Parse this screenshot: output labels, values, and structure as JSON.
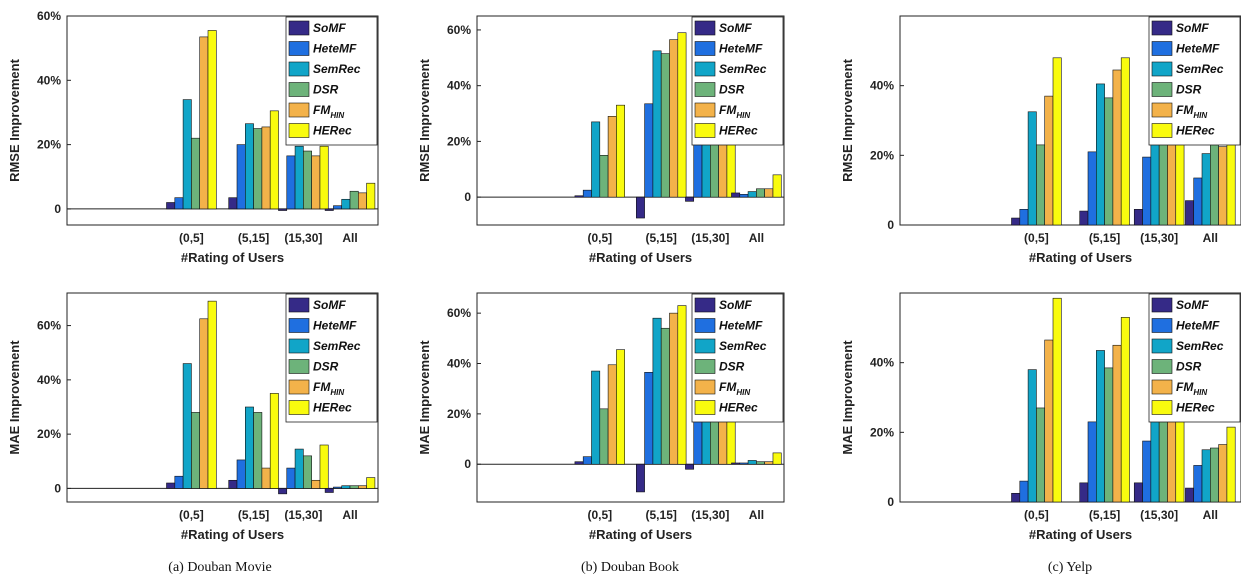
{
  "figure": {
    "captions": [
      "(a)  Douban Movie",
      "(b)  Douban Book",
      "(c)  Yelp"
    ]
  },
  "colors": {
    "SoMF": "#352a87",
    "HeteMF": "#1f6fe0",
    "SemRec": "#11a5c8",
    "DSR": "#6db37a",
    "FM_HIN": "#f3b24a",
    "HERec": "#f9fb0e"
  },
  "chart_data": [
    {
      "type": "bar",
      "categories": [
        "(0,5]",
        "(5,15]",
        "(15,30]",
        "All"
      ],
      "xlabel": "#Rating of Users",
      "ylabel": "RMSE Improvement",
      "ylim": [
        -5,
        60
      ],
      "yticks": [
        0,
        20,
        40,
        60
      ],
      "ytick_labels": [
        "0",
        "20%",
        "40%",
        "60%"
      ],
      "legend": [
        "SoMF",
        "HeteMF",
        "SemRec",
        "DSR",
        "FM",
        "HERec"
      ],
      "legend_sub": [
        "",
        "",
        "",
        "",
        "HIN",
        ""
      ],
      "series": [
        {
          "name": "SoMF",
          "values": [
            2,
            3.5,
            -0.5,
            -0.5
          ]
        },
        {
          "name": "HeteMF",
          "values": [
            3.5,
            20,
            16.5,
            1
          ]
        },
        {
          "name": "SemRec",
          "values": [
            34,
            26.5,
            19.5,
            3
          ]
        },
        {
          "name": "DSR",
          "values": [
            22,
            25,
            18,
            5.5
          ]
        },
        {
          "name": "FM_HIN",
          "values": [
            53.5,
            25.5,
            16.5,
            5
          ]
        },
        {
          "name": "HERec",
          "values": [
            55.5,
            30.5,
            19.5,
            8
          ]
        }
      ]
    },
    {
      "type": "bar",
      "categories": [
        "(0,5]",
        "(5,15]",
        "(15,30]",
        "All"
      ],
      "xlabel": "#Rating of Users",
      "ylabel": "RMSE Improvement",
      "ylim": [
        -10,
        65
      ],
      "yticks": [
        0,
        20,
        40,
        60
      ],
      "ytick_labels": [
        "0",
        "20%",
        "40%",
        "60%"
      ],
      "legend": [
        "SoMF",
        "HeteMF",
        "SemRec",
        "DSR",
        "FM",
        "HERec"
      ],
      "legend_sub": [
        "",
        "",
        "",
        "",
        "HIN",
        ""
      ],
      "series": [
        {
          "name": "SoMF",
          "values": [
            0.5,
            -7.5,
            -1.5,
            1.5
          ]
        },
        {
          "name": "HeteMF",
          "values": [
            2.5,
            33.5,
            21.5,
            1
          ]
        },
        {
          "name": "SemRec",
          "values": [
            27,
            52.5,
            23.5,
            2
          ]
        },
        {
          "name": "DSR",
          "values": [
            15,
            51.5,
            21.5,
            3
          ]
        },
        {
          "name": "FM_HIN",
          "values": [
            29,
            56.5,
            22.5,
            3
          ]
        },
        {
          "name": "HERec",
          "values": [
            33,
            59,
            30.5,
            8
          ]
        }
      ]
    },
    {
      "type": "bar",
      "categories": [
        "(0,5]",
        "(5,15]",
        "(15,30]",
        "All"
      ],
      "xlabel": "#Rating of Users",
      "ylabel": "RMSE Improvement",
      "ylim": [
        0,
        60
      ],
      "yticks": [
        0,
        20,
        40
      ],
      "ytick_labels": [
        "0",
        "20%",
        "40%"
      ],
      "legend": [
        "SoMF",
        "HeteMF",
        "SemRec",
        "DSR",
        "FM",
        "HERec"
      ],
      "legend_sub": [
        "",
        "",
        "",
        "",
        "HIN",
        ""
      ],
      "series": [
        {
          "name": "SoMF",
          "values": [
            2,
            4,
            4.5,
            7
          ]
        },
        {
          "name": "HeteMF",
          "values": [
            4.5,
            21,
            19.5,
            13.5
          ]
        },
        {
          "name": "SemRec",
          "values": [
            32.5,
            40.5,
            35,
            20.5
          ]
        },
        {
          "name": "DSR",
          "values": [
            23,
            36.5,
            33.5,
            24.5
          ]
        },
        {
          "name": "FM_HIN",
          "values": [
            37,
            44.5,
            35,
            22.5
          ]
        },
        {
          "name": "HERec",
          "values": [
            48,
            48,
            36,
            25
          ]
        }
      ]
    },
    {
      "type": "bar",
      "categories": [
        "(0,5]",
        "(5,15]",
        "(15,30]",
        "All"
      ],
      "xlabel": "#Rating of Users",
      "ylabel": "MAE Improvement",
      "ylim": [
        -5,
        72
      ],
      "yticks": [
        0,
        20,
        40,
        60
      ],
      "ytick_labels": [
        "0",
        "20%",
        "40%",
        "60%"
      ],
      "legend": [
        "SoMF",
        "HeteMF",
        "SemRec",
        "DSR",
        "FM",
        "HERec"
      ],
      "legend_sub": [
        "",
        "",
        "",
        "",
        "HIN",
        ""
      ],
      "series": [
        {
          "name": "SoMF",
          "values": [
            2,
            3,
            -2,
            -1.5
          ]
        },
        {
          "name": "HeteMF",
          "values": [
            4.5,
            10.5,
            7.5,
            0.5
          ]
        },
        {
          "name": "SemRec",
          "values": [
            46,
            30,
            14.5,
            1
          ]
        },
        {
          "name": "DSR",
          "values": [
            28,
            28,
            12,
            1
          ]
        },
        {
          "name": "FM_HIN",
          "values": [
            62.5,
            7.5,
            3,
            1
          ]
        },
        {
          "name": "HERec",
          "values": [
            69,
            35,
            16,
            4
          ]
        }
      ]
    },
    {
      "type": "bar",
      "categories": [
        "(0,5]",
        "(5,15]",
        "(15,30]",
        "All"
      ],
      "xlabel": "#Rating of Users",
      "ylabel": "MAE Improvement",
      "ylim": [
        -15,
        68
      ],
      "yticks": [
        0,
        20,
        40,
        60
      ],
      "ytick_labels": [
        "0",
        "20%",
        "40%",
        "60%"
      ],
      "legend": [
        "SoMF",
        "HeteMF",
        "SemRec",
        "DSR",
        "FM",
        "HERec"
      ],
      "legend_sub": [
        "",
        "",
        "",
        "",
        "HIN",
        ""
      ],
      "series": [
        {
          "name": "SoMF",
          "values": [
            1,
            -11,
            -2,
            0.5
          ]
        },
        {
          "name": "HeteMF",
          "values": [
            3,
            36.5,
            29,
            0.5
          ]
        },
        {
          "name": "SemRec",
          "values": [
            37,
            58,
            32,
            1.5
          ]
        },
        {
          "name": "DSR",
          "values": [
            22,
            54,
            29,
            1
          ]
        },
        {
          "name": "FM_HIN",
          "values": [
            39.5,
            60,
            31.5,
            1
          ]
        },
        {
          "name": "HERec",
          "values": [
            45.5,
            63,
            39.5,
            4.5
          ]
        }
      ]
    },
    {
      "type": "bar",
      "categories": [
        "(0,5]",
        "(5,15]",
        "(15,30]",
        "All"
      ],
      "xlabel": "#Rating of Users",
      "ylabel": "MAE Improvement",
      "ylim": [
        0,
        60
      ],
      "yticks": [
        0,
        20,
        40
      ],
      "ytick_labels": [
        "0",
        "20%",
        "40%"
      ],
      "legend": [
        "SoMF",
        "HeteMF",
        "SemRec",
        "DSR",
        "FM",
        "HERec"
      ],
      "legend_sub": [
        "",
        "",
        "",
        "",
        "HIN",
        ""
      ],
      "series": [
        {
          "name": "SoMF",
          "values": [
            2.5,
            5.5,
            5.5,
            4
          ]
        },
        {
          "name": "HeteMF",
          "values": [
            6,
            23,
            17.5,
            10.5
          ]
        },
        {
          "name": "SemRec",
          "values": [
            38,
            43.5,
            33.5,
            15
          ]
        },
        {
          "name": "DSR",
          "values": [
            27,
            38.5,
            32.5,
            15.5
          ]
        },
        {
          "name": "FM_HIN",
          "values": [
            46.5,
            45,
            35,
            16.5
          ]
        },
        {
          "name": "HERec",
          "values": [
            58.5,
            53,
            36.5,
            21.5
          ]
        }
      ]
    }
  ]
}
